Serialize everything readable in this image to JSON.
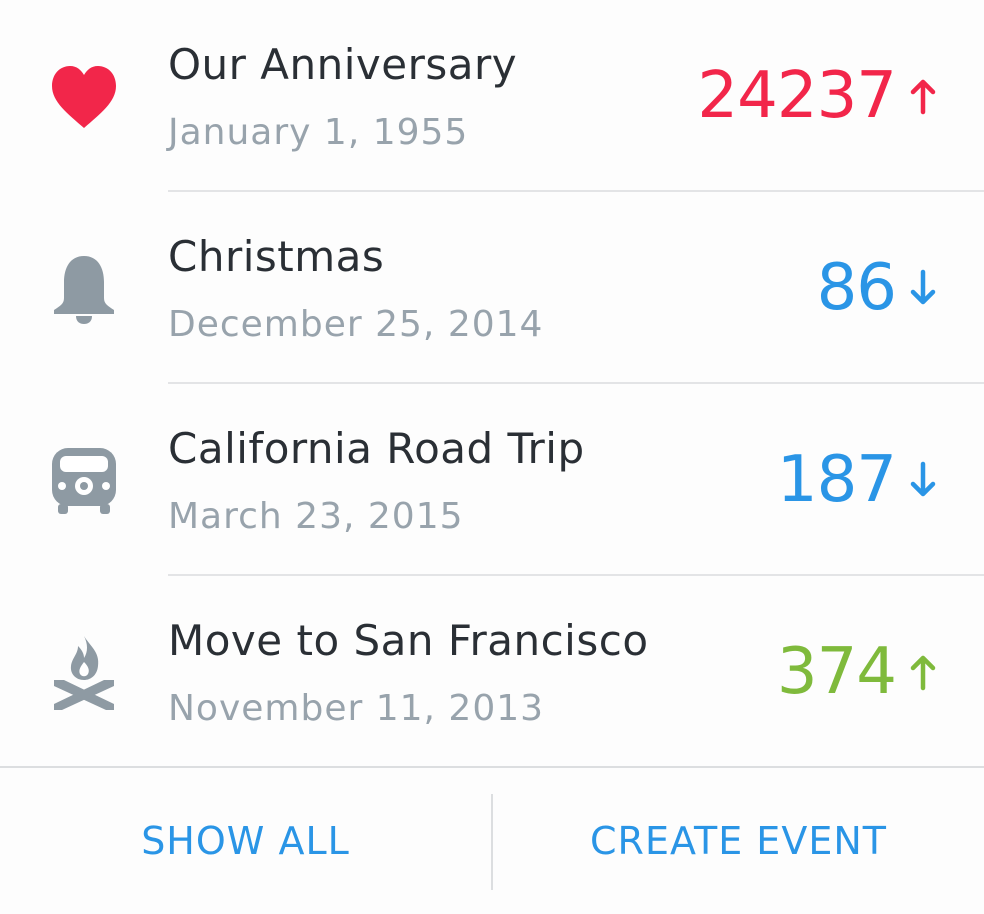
{
  "colors": {
    "red": "#f2264a",
    "blue": "#2a95e6",
    "green": "#7fba3c",
    "icon_gray": "#8e9aa3",
    "title": "#2a2f35",
    "date": "#98a3ac"
  },
  "events": [
    {
      "title": "Our Anniversary",
      "date": "January 1, 1955",
      "count": "24237",
      "direction": "up",
      "color": "#f2264a",
      "icon": "heart-icon"
    },
    {
      "title": "Christmas",
      "date": "December 25, 2014",
      "count": "86",
      "direction": "down",
      "color": "#2a95e6",
      "icon": "bell-icon"
    },
    {
      "title": "California Road Trip",
      "date": "March 23, 2015",
      "count": "187",
      "direction": "down",
      "color": "#2a95e6",
      "icon": "van-icon"
    },
    {
      "title": "Move to San Francisco",
      "date": "November 11, 2013",
      "count": "374",
      "direction": "up",
      "color": "#7fba3c",
      "icon": "campfire-icon"
    }
  ],
  "footer": {
    "show_all_label": "SHOW ALL",
    "create_event_label": "CREATE EVENT"
  }
}
